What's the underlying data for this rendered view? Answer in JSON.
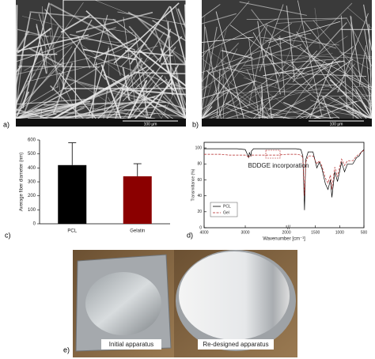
{
  "panel_labels": [
    "a)",
    "b)",
    "c)",
    "d)",
    "e)"
  ],
  "sem_scale_labels": [
    "100 µm",
    "100 µm"
  ],
  "photo_captions": [
    "Initial apparatus",
    "Re-designed apparatus"
  ],
  "chart_data": [
    {
      "type": "bar",
      "y_label": "Average fiber diameter (nm)",
      "categories": [
        "PCL",
        "Gelatin"
      ],
      "values": [
        420,
        340
      ],
      "errors": [
        160,
        90
      ],
      "colors": [
        "#000000",
        "#8b0000"
      ],
      "ylim": [
        0,
        600
      ],
      "yticks": [
        0,
        100,
        200,
        300,
        400,
        500,
        600
      ]
    },
    {
      "type": "line",
      "x_label": "Wavenumber [cm⁻¹]",
      "y_label": "Transmittance (%)",
      "annotation": "BDDGE incorporation",
      "x": [
        4000,
        3800,
        3600,
        3400,
        3200,
        3000,
        2950,
        2920,
        2900,
        2865,
        2850,
        2800,
        2600,
        2400,
        2200,
        2000,
        1900,
        1800,
        1760,
        1725,
        1700,
        1650,
        1550,
        1470,
        1420,
        1370,
        1295,
        1240,
        1190,
        1160,
        1100,
        1045,
        960,
        900,
        840,
        730,
        650,
        600,
        550,
        500
      ],
      "series": [
        {
          "name": "PCL",
          "color": "#000000",
          "dash": false,
          "values": [
            99,
            99,
            99,
            99,
            99,
            98,
            92,
            88,
            94,
            90,
            96,
            99,
            99,
            99,
            99,
            99,
            99,
            98,
            90,
            22,
            85,
            95,
            95,
            75,
            82,
            75,
            55,
            48,
            60,
            38,
            70,
            58,
            82,
            70,
            80,
            80,
            88,
            90,
            95,
            98
          ]
        },
        {
          "name": "Gel",
          "color": "#b22222",
          "dash": true,
          "values": [
            92,
            92,
            92,
            91,
            91,
            91,
            90,
            88,
            90,
            90,
            91,
            91,
            91,
            91,
            91,
            92,
            92,
            91,
            88,
            40,
            82,
            90,
            90,
            80,
            84,
            78,
            62,
            56,
            66,
            48,
            76,
            64,
            86,
            78,
            84,
            84,
            90,
            92,
            95,
            97
          ]
        }
      ],
      "xlim": [
        4000,
        500
      ],
      "xticks": [
        4000,
        3000,
        2000,
        1500,
        1000,
        500
      ],
      "x_break": 2000,
      "ylim": [
        0,
        107
      ],
      "yticks": [
        0,
        20,
        40,
        60,
        80,
        100
      ],
      "legend": "lower-left"
    }
  ]
}
